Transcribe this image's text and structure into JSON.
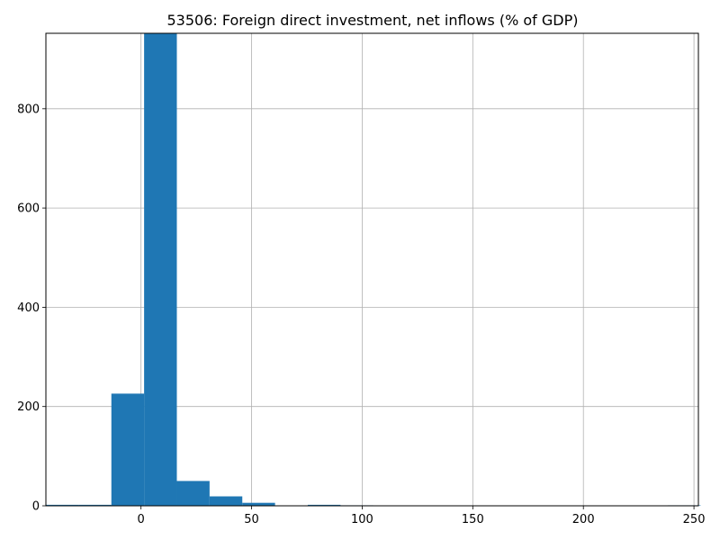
{
  "chart_data": {
    "type": "bar",
    "title": "53506: Foreign direct investment, net inflows (% of GDP)",
    "xlabel": "",
    "ylabel": "",
    "xlim": [
      -43,
      252
    ],
    "ylim": [
      0,
      952
    ],
    "grid": true,
    "bar_color": "#1f77b4",
    "bins": [
      {
        "x0": -43.0,
        "x1": -28.2,
        "count": 2
      },
      {
        "x0": -28.2,
        "x1": -13.4,
        "count": 2
      },
      {
        "x0": -13.4,
        "x1": 1.4,
        "count": 226
      },
      {
        "x0": 1.4,
        "x1": 16.2,
        "count": 952
      },
      {
        "x0": 16.2,
        "x1": 31.0,
        "count": 50
      },
      {
        "x0": 31.0,
        "x1": 45.8,
        "count": 19
      },
      {
        "x0": 45.8,
        "x1": 60.6,
        "count": 6
      },
      {
        "x0": 60.6,
        "x1": 75.4,
        "count": 0
      },
      {
        "x0": 75.4,
        "x1": 90.2,
        "count": 2
      },
      {
        "x0": 90.2,
        "x1": 105.0,
        "count": 1
      },
      {
        "x0": 105.0,
        "x1": 119.8,
        "count": 0
      },
      {
        "x0": 119.8,
        "x1": 134.6,
        "count": 0
      },
      {
        "x0": 134.6,
        "x1": 149.4,
        "count": 0
      },
      {
        "x0": 149.4,
        "x1": 164.2,
        "count": 0
      },
      {
        "x0": 164.2,
        "x1": 179.0,
        "count": 0
      },
      {
        "x0": 179.0,
        "x1": 193.8,
        "count": 0
      },
      {
        "x0": 193.8,
        "x1": 208.6,
        "count": 0
      },
      {
        "x0": 208.6,
        "x1": 223.4,
        "count": 0
      },
      {
        "x0": 223.4,
        "x1": 238.2,
        "count": 0
      },
      {
        "x0": 238.2,
        "x1": 253.0,
        "count": 1
      }
    ],
    "x_ticks": [
      0,
      50,
      100,
      150,
      200,
      250
    ],
    "y_ticks": [
      0,
      200,
      400,
      600,
      800
    ]
  }
}
